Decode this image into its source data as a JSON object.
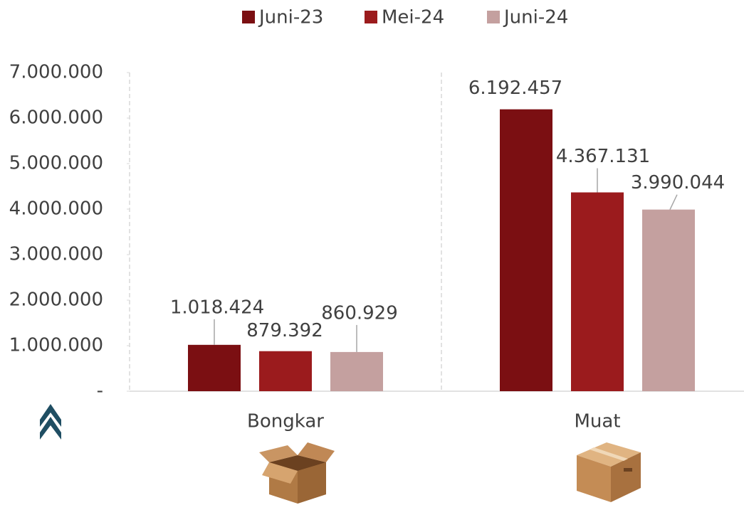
{
  "chart_data": {
    "type": "bar",
    "categories": [
      "Bongkar",
      "Muat"
    ],
    "series": [
      {
        "name": "Juni-23",
        "color": "#7b0f12",
        "values": [
          1018424,
          6192457
        ],
        "value_labels": [
          "1.018.424",
          "6.192.457"
        ]
      },
      {
        "name": "Mei-24",
        "color": "#9b1b1d",
        "values": [
          879392,
          4367131
        ],
        "value_labels": [
          "879.392",
          "4.367.131"
        ]
      },
      {
        "name": "Juni-24",
        "color": "#c4a09f",
        "values": [
          860929,
          3990044
        ],
        "value_labels": [
          "860.929",
          "3.990.044"
        ]
      }
    ],
    "ylim": [
      0,
      7000000
    ],
    "yticks": [
      {
        "value": 0,
        "label": "-"
      },
      {
        "value": 1000000,
        "label": "1.000.000"
      },
      {
        "value": 2000000,
        "label": "2.000.000"
      },
      {
        "value": 3000000,
        "label": "3.000.000"
      },
      {
        "value": 4000000,
        "label": "4.000.000"
      },
      {
        "value": 5000000,
        "label": "5.000.000"
      },
      {
        "value": 6000000,
        "label": "6.000.000"
      },
      {
        "value": 7000000,
        "label": "7.000.000"
      }
    ],
    "legend": "top"
  }
}
